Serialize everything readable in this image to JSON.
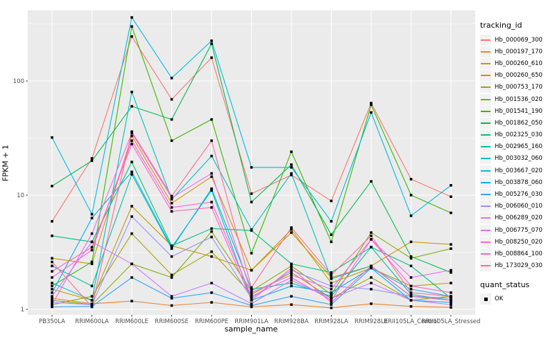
{
  "chart_data": {
    "type": "line",
    "title": "",
    "xlabel": "sample_name",
    "ylabel": "FPKM + 1",
    "y_scale": "log10",
    "y_ticks": [
      1,
      10,
      100
    ],
    "y_minor_ticks": [
      3.162,
      31.62,
      316.2
    ],
    "ylim": [
      1,
      420
    ],
    "grid": true,
    "panel_bg": "#EBEBEB",
    "grid_color": "#FFFFFF",
    "tick_text_color": "#4D4D4D",
    "marker": "black-square",
    "legend_position": "right",
    "legend_title": "tracking_id",
    "quant_legend": {
      "title": "quant_status",
      "items": [
        {
          "label": "OK",
          "marker": "black-square"
        }
      ]
    },
    "categories": [
      "PB350LA",
      "RRIM600LA",
      "RRIM600LE",
      "RRIM600SE",
      "RRIM600PE",
      "RRIM901LA",
      "RRIM928BA",
      "RRIM928LA",
      "RRIM928LE",
      "RRII105LA_Control",
      "RRII105LA_Stressed"
    ],
    "series": [
      {
        "name": "Hb_000069_300",
        "color": "#F8766D",
        "values": [
          5.9,
          21,
          245,
          69,
          160,
          10.3,
          15,
          8.9,
          64,
          13.8,
          9.7
        ]
      },
      {
        "name": "Hb_000197_170",
        "color": "#EA8331",
        "values": [
          1.25,
          1.12,
          1.18,
          1.08,
          1.15,
          1.05,
          1.1,
          1.03,
          1.12,
          1.06,
          1.04
        ]
      },
      {
        "name": "Hb_000260_610",
        "color": "#D89000",
        "values": [
          2.8,
          2.5,
          33,
          8.5,
          14.5,
          2.2,
          4.7,
          1.9,
          2.4,
          3.9,
          3.7
        ]
      },
      {
        "name": "Hb_000260_650",
        "color": "#C09B00",
        "values": [
          1.5,
          1.2,
          8.0,
          3.6,
          2.9,
          2.2,
          5.0,
          1.7,
          2.3,
          1.6,
          1.7
        ]
      },
      {
        "name": "Hb_000753_170",
        "color": "#A3A500",
        "values": [
          1.1,
          1.3,
          4.6,
          2.0,
          3.2,
          1.35,
          2.1,
          1.25,
          1.9,
          1.2,
          1.3
        ]
      },
      {
        "name": "Hb_001536_020",
        "color": "#7CAE00",
        "values": [
          1.2,
          1.1,
          2.5,
          1.9,
          4.8,
          1.45,
          2.4,
          1.35,
          4.7,
          2.8,
          3.4
        ]
      },
      {
        "name": "Hb_001541_190",
        "color": "#39B600",
        "values": [
          1.6,
          2.6,
          300,
          30,
          46,
          3.1,
          24,
          3.9,
          62,
          10,
          7.0
        ]
      },
      {
        "name": "Hb_001862_050",
        "color": "#00BB4E",
        "values": [
          12,
          20,
          60,
          46,
          212,
          8.7,
          18.5,
          4.5,
          13.2,
          2.9,
          2.1
        ]
      },
      {
        "name": "Hb_002325_030",
        "color": "#00BF7D",
        "values": [
          4.4,
          3.9,
          19.5,
          3.6,
          5.1,
          4.9,
          2.5,
          2.1,
          3.5,
          2.4,
          1.25
        ]
      },
      {
        "name": "Hb_002965_160",
        "color": "#00C1A3",
        "values": [
          2.4,
          1.6,
          15.2,
          3.4,
          11.4,
          1.5,
          1.7,
          1.3,
          3.5,
          1.35,
          1.2
        ]
      },
      {
        "name": "Hb_003032_060",
        "color": "#00BFC4",
        "values": [
          1.7,
          1.2,
          80,
          9.2,
          22,
          5.0,
          15.5,
          1.85,
          2.4,
          1.3,
          1.2
        ]
      },
      {
        "name": "Hb_003667_020",
        "color": "#00BAE0",
        "values": [
          32,
          6.8,
          360,
          106,
          225,
          17.5,
          17.5,
          5.9,
          53,
          6.6,
          12.2
        ]
      },
      {
        "name": "Hb_003878_060",
        "color": "#00B0F6",
        "values": [
          1.4,
          6.3,
          16,
          3.5,
          11,
          1.2,
          1.6,
          1.4,
          2.3,
          1.2,
          1.15
        ]
      },
      {
        "name": "Hb_005276_030",
        "color": "#35A2FF",
        "values": [
          1.05,
          1.06,
          1.9,
          1.25,
          1.4,
          1.08,
          1.3,
          1.1,
          2.3,
          1.5,
          1.3
        ]
      },
      {
        "name": "Hb_006060_010",
        "color": "#9590FF",
        "values": [
          1.15,
          1.1,
          6.5,
          2.9,
          4.3,
          1.25,
          2.2,
          1.6,
          1.5,
          1.3,
          1.25
        ]
      },
      {
        "name": "Hb_006289_020",
        "color": "#C77CFF",
        "values": [
          1.3,
          3.9,
          2.5,
          1.3,
          1.7,
          1.12,
          1.8,
          1.25,
          1.7,
          1.2,
          1.1
        ]
      },
      {
        "name": "Hb_006775_070",
        "color": "#E76BF3",
        "values": [
          1.1,
          4.6,
          35,
          9.5,
          15.5,
          1.4,
          2.0,
          1.5,
          4.1,
          1.9,
          2.2
        ]
      },
      {
        "name": "Hb_008250_020",
        "color": "#FA62DB",
        "values": [
          1.9,
          3.3,
          30,
          7.8,
          8.7,
          1.3,
          1.9,
          1.2,
          4.1,
          1.6,
          1.4
        ]
      },
      {
        "name": "Hb_008864_100",
        "color": "#FF62BC",
        "values": [
          2.15,
          3.5,
          28,
          7.2,
          7.8,
          1.2,
          2.3,
          1.15,
          2.4,
          1.3,
          1.2
        ]
      },
      {
        "name": "Hb_173029_030",
        "color": "#FF6A98",
        "values": [
          2.6,
          1.05,
          36,
          9.8,
          30,
          1.55,
          5.2,
          2.0,
          4.4,
          1.4,
          1.3
        ]
      }
    ]
  }
}
